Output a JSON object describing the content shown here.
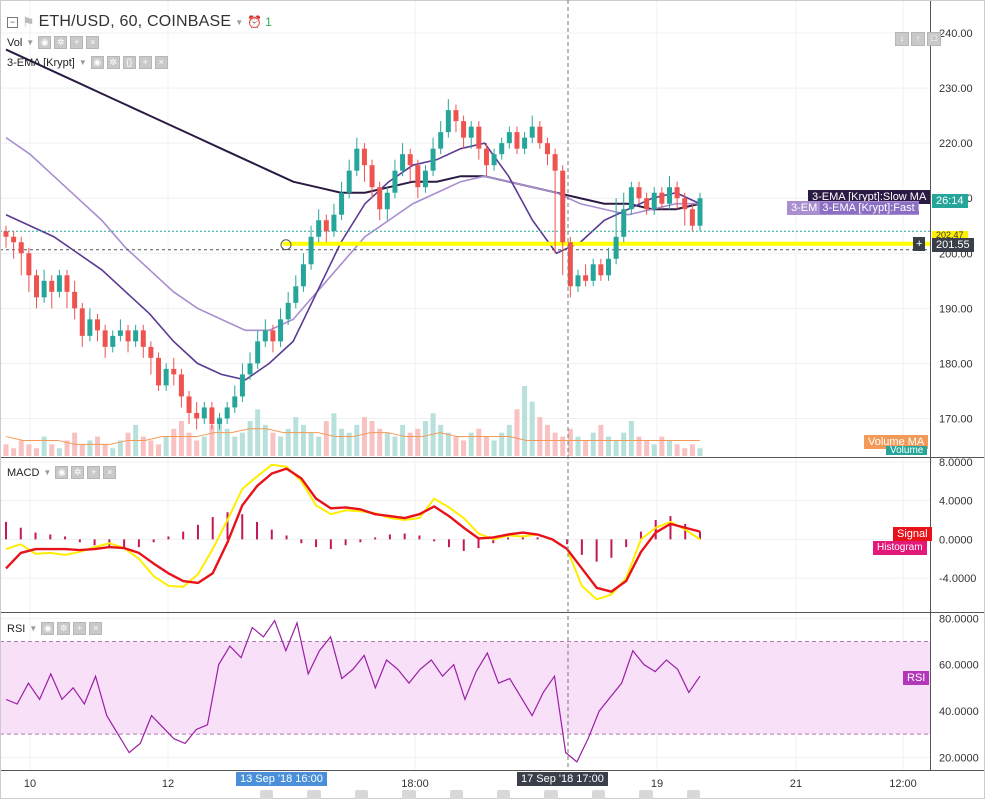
{
  "symbol": {
    "title": "ETH/USD, 60, COINBASE",
    "alert_count": "1",
    "collapse_icon": "minus-box-icon",
    "flag_icon": "flag-icon",
    "alarm_icon": "alarm-clock-icon"
  },
  "indicators": {
    "vol": "Vol",
    "ema": "3-EMA [Krypt]",
    "macd": "MACD",
    "rsi": "RSI"
  },
  "colors": {
    "up": "#26a69a",
    "down": "#ef5350",
    "slow_ma": "#2b1a44",
    "med_ma": "#5b3a94",
    "fast_ma": "#a98ed0",
    "volume_ma": "#f39a58",
    "macd_line": "#ffee00",
    "signal_line": "#e8121a",
    "rsi_line": "#9b1fa5",
    "rsi_band": "#f7e0f8",
    "support": "#ffff00"
  },
  "chart_data": [
    {
      "type": "candlestick",
      "panel": "price",
      "ylim": [
        163,
        246
      ],
      "y_ticks": [
        "240.00",
        "230.00",
        "220.00",
        "210.00",
        "200.00",
        "190.00",
        "180.00",
        "170.00"
      ],
      "x_ticks": [
        "10",
        "12",
        "13 Sep '18 16:00",
        "18:00",
        "17 Sep '18 17:00",
        "19",
        "21",
        "12:00"
      ],
      "x_grid_days": [
        "10",
        "12",
        "18:00",
        "19",
        "21",
        "12:00"
      ],
      "cursor_time": "17 Sep '18 17:00",
      "crosshair_time": "13 Sep '18 16:00",
      "close_anchor": 204,
      "candles": [
        [
          204,
          203,
          205,
          201
        ],
        [
          203,
          202,
          204,
          199
        ],
        [
          202,
          200,
          203,
          196
        ],
        [
          200,
          196,
          201,
          193
        ],
        [
          196,
          192,
          197,
          190
        ],
        [
          192,
          195,
          197,
          191
        ],
        [
          195,
          193,
          196,
          190
        ],
        [
          193,
          196,
          197,
          192
        ],
        [
          196,
          193,
          197,
          190
        ],
        [
          193,
          190,
          195,
          188
        ],
        [
          190,
          185,
          191,
          183
        ],
        [
          185,
          188,
          190,
          184
        ],
        [
          188,
          186,
          189,
          184
        ],
        [
          186,
          183,
          187,
          181
        ],
        [
          183,
          185,
          186,
          182
        ],
        [
          185,
          186,
          188,
          184
        ],
        [
          186,
          184,
          187,
          182
        ],
        [
          184,
          186,
          187,
          183
        ],
        [
          186,
          183,
          187,
          181
        ],
        [
          183,
          181,
          184,
          178
        ],
        [
          181,
          176,
          182,
          175
        ],
        [
          176,
          179,
          180,
          175
        ],
        [
          179,
          178,
          181,
          176
        ],
        [
          178,
          174,
          179,
          172
        ],
        [
          174,
          171,
          175,
          169
        ],
        [
          171,
          170,
          173,
          168
        ],
        [
          170,
          172,
          173,
          169
        ],
        [
          172,
          169,
          173,
          168
        ],
        [
          169,
          170,
          171,
          168
        ],
        [
          170,
          172,
          173,
          169
        ],
        [
          172,
          174,
          176,
          171
        ],
        [
          174,
          178,
          180,
          173
        ],
        [
          178,
          180,
          182,
          177
        ],
        [
          180,
          184,
          186,
          179
        ],
        [
          184,
          186,
          188,
          183
        ],
        [
          186,
          184,
          187,
          182
        ],
        [
          184,
          188,
          190,
          183
        ],
        [
          188,
          191,
          193,
          187
        ],
        [
          191,
          194,
          196,
          190
        ],
        [
          194,
          198,
          200,
          193
        ],
        [
          198,
          203,
          205,
          197
        ],
        [
          203,
          206,
          208,
          202
        ],
        [
          206,
          204,
          207,
          202
        ],
        [
          204,
          207,
          209,
          203
        ],
        [
          207,
          211,
          213,
          206
        ],
        [
          211,
          215,
          217,
          210
        ],
        [
          215,
          219,
          221,
          214
        ],
        [
          219,
          216,
          220,
          213
        ],
        [
          216,
          212,
          217,
          210
        ],
        [
          212,
          208,
          213,
          206
        ],
        [
          208,
          211,
          212,
          206
        ],
        [
          211,
          215,
          217,
          210
        ],
        [
          215,
          218,
          220,
          214
        ],
        [
          218,
          216,
          219,
          213
        ],
        [
          216,
          212,
          217,
          210
        ],
        [
          212,
          215,
          216,
          211
        ],
        [
          215,
          219,
          221,
          214
        ],
        [
          219,
          222,
          224,
          218
        ],
        [
          222,
          226,
          228,
          221
        ],
        [
          226,
          224,
          227,
          222
        ],
        [
          224,
          221,
          225,
          219
        ],
        [
          221,
          223,
          224,
          219
        ],
        [
          223,
          219,
          224,
          217
        ],
        [
          219,
          216,
          220,
          214
        ],
        [
          216,
          218,
          219,
          215
        ],
        [
          218,
          220,
          221,
          217
        ],
        [
          220,
          222,
          223,
          219
        ],
        [
          222,
          219,
          223,
          218
        ],
        [
          219,
          221,
          222,
          218
        ],
        [
          221,
          223,
          225,
          220
        ],
        [
          223,
          220,
          224,
          219
        ],
        [
          220,
          218,
          221,
          216
        ],
        [
          218,
          215,
          219,
          200
        ],
        [
          215,
          202,
          216,
          196
        ],
        [
          202,
          194,
          203,
          192
        ],
        [
          194,
          196,
          197,
          193
        ],
        [
          196,
          195,
          198,
          194
        ],
        [
          195,
          198,
          199,
          194
        ],
        [
          198,
          196,
          199,
          195
        ],
        [
          196,
          199,
          201,
          195
        ],
        [
          199,
          203,
          210,
          198
        ],
        [
          203,
          208,
          211,
          202
        ],
        [
          208,
          212,
          213,
          207
        ],
        [
          212,
          210,
          213,
          209
        ],
        [
          210,
          208,
          211,
          207
        ],
        [
          208,
          211,
          212,
          207
        ],
        [
          211,
          209,
          212,
          208
        ],
        [
          209,
          212,
          214,
          208
        ],
        [
          212,
          210,
          213,
          208
        ],
        [
          210,
          208,
          211,
          205
        ],
        [
          208,
          205,
          209,
          204
        ],
        [
          205,
          210,
          211,
          204
        ]
      ]
    },
    {
      "type": "line",
      "panel": "price",
      "series": [
        {
          "name": "3-EMA [Krypt]:Slow MA",
          "values": [
            237,
            235,
            233,
            231,
            229,
            227,
            225,
            223,
            221,
            219,
            217,
            215,
            213,
            212,
            211,
            211,
            212,
            213,
            213,
            214,
            214,
            213,
            212,
            211,
            210,
            209,
            209,
            208,
            208,
            209
          ]
        },
        {
          "name": "3-EMA [Krypt]:Fast MA",
          "values": [
            221,
            218,
            214,
            210,
            206,
            201,
            197,
            193,
            190,
            188,
            186,
            186,
            188,
            193,
            198,
            203,
            206,
            209,
            211,
            213,
            214,
            213,
            212,
            211,
            209,
            208,
            207,
            208,
            209,
            209
          ]
        },
        {
          "name": "3-EMA [Krypt]:Med MA",
          "values": [
            207,
            205,
            203,
            200,
            197,
            193,
            189,
            184,
            180,
            178,
            177,
            180,
            184,
            193,
            202,
            209,
            213,
            216,
            217,
            219,
            220,
            214,
            206,
            200,
            202,
            206,
            208,
            210,
            211,
            209
          ]
        }
      ]
    },
    {
      "type": "bar",
      "panel": "volume",
      "series": [
        {
          "name": "Volume MA",
          "values": [
            5,
            4,
            4,
            4,
            3,
            3,
            3,
            4,
            4,
            5,
            5,
            5,
            6,
            6,
            7,
            7,
            6,
            6,
            6,
            5,
            5,
            6,
            6,
            5,
            5,
            6,
            5,
            5,
            5,
            5,
            4,
            4,
            4,
            4,
            4,
            4,
            4,
            4,
            4,
            4,
            4
          ]
        }
      ],
      "volume_label": "Volume",
      "volume_ma_label": "Volume MA",
      "volumes": [
        3,
        2,
        4,
        3,
        2,
        5,
        3,
        2,
        4,
        6,
        3,
        4,
        5,
        3,
        2,
        4,
        6,
        8,
        5,
        4,
        3,
        5,
        7,
        9,
        6,
        4,
        5,
        8,
        10,
        7,
        5,
        6,
        9,
        12,
        8,
        6,
        5,
        7,
        10,
        8,
        6,
        5,
        9,
        11,
        7,
        6,
        8,
        10,
        9,
        7,
        6,
        5,
        8,
        6,
        7,
        9,
        11,
        8,
        6,
        5,
        4,
        6,
        7,
        5,
        4,
        6,
        8,
        12,
        18,
        14,
        10,
        8,
        6,
        5,
        7,
        5,
        4,
        6,
        8,
        5,
        4,
        6,
        9,
        5,
        4,
        3,
        5,
        4,
        3,
        2,
        3,
        2
      ]
    },
    {
      "type": "line",
      "panel": "macd",
      "ylim": [
        -7.5,
        8.4
      ],
      "y_ticks": [
        "8.0000",
        "4.0000",
        "0.0000",
        "-4.0000"
      ],
      "series": [
        {
          "name": "MACD",
          "values": [
            -1,
            -0.5,
            -1.5,
            -1.4,
            -1.6,
            -1.3,
            -0.8,
            -0.4,
            -0.9,
            -2,
            -3.8,
            -4.8,
            -4.9,
            -3.6,
            -1,
            2,
            5.2,
            6.5,
            7.7,
            7.5,
            6,
            3.5,
            2.6,
            3,
            2.9,
            2.7,
            2.2,
            2,
            2.2,
            4.2,
            3.3,
            2.2,
            0.6,
            0,
            0.4,
            0.3,
            0.5,
            0,
            -1,
            -4.8,
            -6.2,
            -5.7,
            -4,
            0,
            1.2,
            1.8,
            1,
            0
          ]
        },
        {
          "name": "Signal",
          "values": [
            -3,
            -1.4,
            -1,
            -1,
            -1,
            -1.1,
            -1,
            -0.8,
            -0.9,
            -1.4,
            -2.5,
            -3.5,
            -4.3,
            -4.5,
            -3.5,
            -0.3,
            3.5,
            5.5,
            6.8,
            7.3,
            6.3,
            4.2,
            3.2,
            3.3,
            3.1,
            2.6,
            2.4,
            2.2,
            2.6,
            3.4,
            2.4,
            1.2,
            0.1,
            0.2,
            0.5,
            0.7,
            0.5,
            0,
            -1,
            -3,
            -5,
            -5.4,
            -4.3,
            -1.3,
            0.7,
            1.6,
            1.2,
            0.8
          ]
        },
        {
          "name": "Histogram",
          "values": [
            1.8,
            1.2,
            0.7,
            0.5,
            0.3,
            -0.3,
            -0.6,
            -0.8,
            -1,
            -0.8,
            -0.3,
            0.3,
            0.8,
            1.5,
            2.3,
            2.8,
            2.6,
            1.8,
            1,
            0.4,
            -0.4,
            -0.8,
            -1,
            -0.6,
            -0.3,
            0.2,
            0.5,
            0.6,
            0.4,
            -0.2,
            -0.8,
            -1.2,
            -0.9,
            -0.4,
            0.2,
            0.4,
            0.2,
            0,
            -0.5,
            -1.6,
            -2.3,
            -1.9,
            -0.8,
            0.8,
            2,
            2.4,
            1.6,
            0.8
          ]
        }
      ],
      "signal_label": "Signal",
      "histogram_label": "Histogram"
    },
    {
      "type": "line",
      "panel": "rsi",
      "ylim": [
        14.5,
        82.3
      ],
      "y_ticks": [
        "80.0000",
        "60.0000",
        "40.0000",
        "20.0000"
      ],
      "band": [
        30,
        70
      ],
      "series": [
        {
          "name": "RSI",
          "values": [
            45,
            43,
            52,
            45,
            56,
            45,
            50,
            43,
            55,
            38,
            30,
            22,
            26,
            38,
            33,
            28,
            26,
            32,
            34,
            60,
            68,
            63,
            76,
            72,
            79,
            66,
            78,
            56,
            66,
            72,
            54,
            58,
            64,
            50,
            62,
            58,
            52,
            58,
            62,
            55,
            60,
            45,
            57,
            65,
            52,
            54,
            46,
            38,
            48,
            55,
            22,
            18,
            28,
            40,
            46,
            52,
            66,
            60,
            57,
            62,
            58,
            48,
            55
          ]
        }
      ],
      "rsi_label": "RSI"
    }
  ],
  "labels": {
    "slow_ma_badge": "3-EMA [Krypt]:Slow MA",
    "fast_ma_badge": "3-EMA [Krypt]:Fast MA",
    "fast_ma_prefix": "3-EM",
    "last_price": "26:14",
    "support_price": "201.55",
    "partial_price": "202.47",
    "time_1": "13 Sep '18 16:00",
    "time_2": "17 Sep '18 17:00"
  }
}
